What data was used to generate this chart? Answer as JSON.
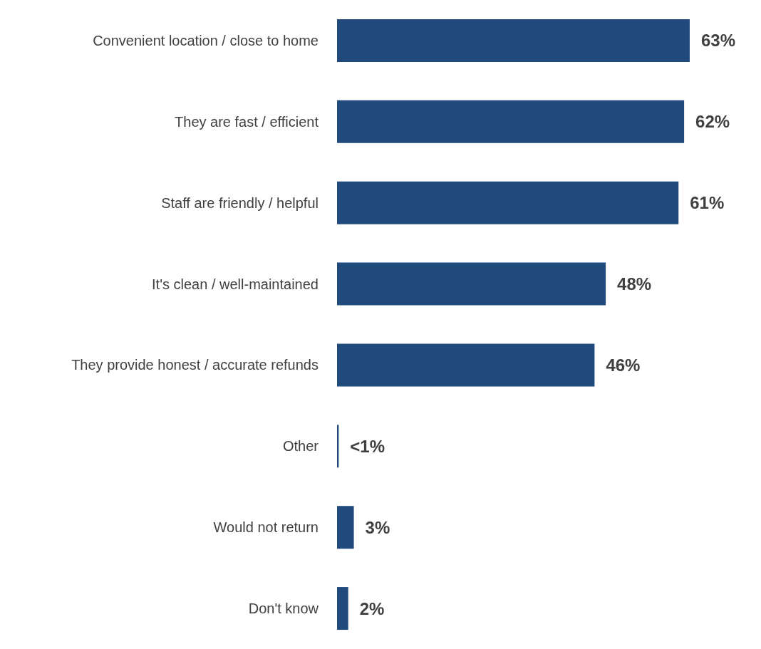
{
  "chart_data": {
    "type": "bar",
    "orientation": "horizontal",
    "categories": [
      "Convenient location / close to home",
      "They are fast / efficient",
      "Staff are friendly / helpful",
      "It's clean / well-maintained",
      "They provide honest / accurate refunds",
      "Other",
      "Would not return",
      "Don't know"
    ],
    "values": [
      63,
      62,
      61,
      48,
      46,
      0.3,
      3,
      2
    ],
    "value_labels": [
      "63%",
      "62%",
      "61%",
      "48%",
      "46%",
      "<1%",
      "3%",
      "2%"
    ],
    "color": "#204a7c",
    "grid": false
  }
}
